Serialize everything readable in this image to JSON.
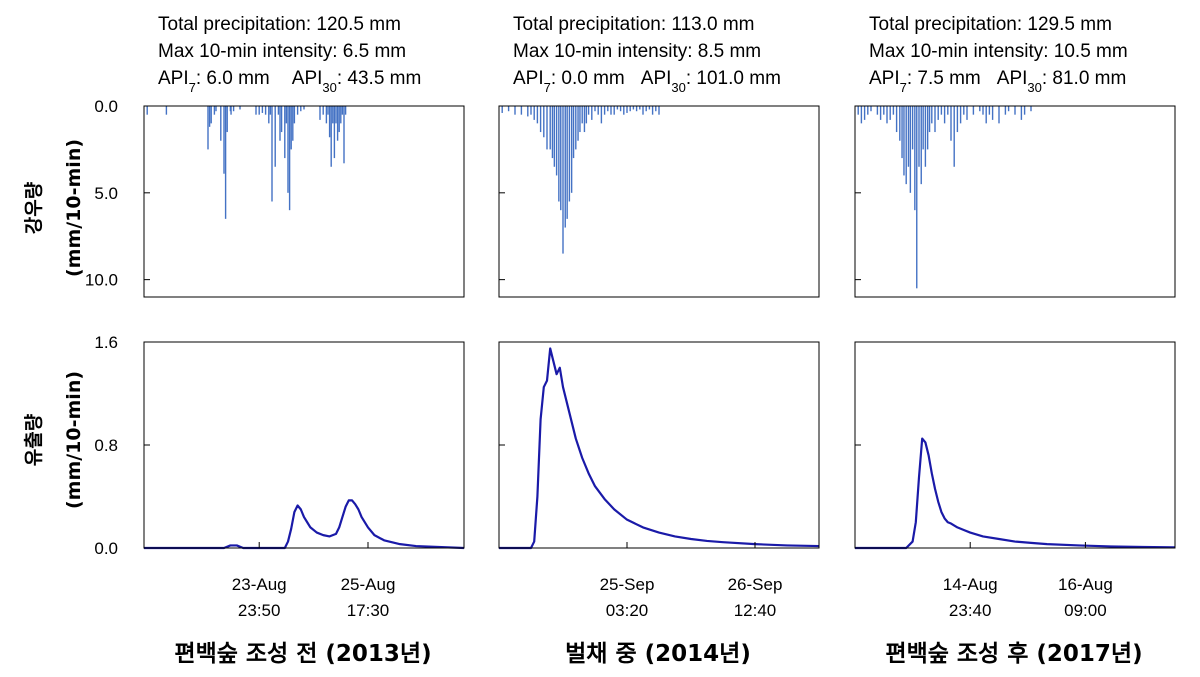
{
  "y_labels": {
    "rain_line1": "강우량",
    "rain_line2": "(mm/10-min)",
    "runoff_line1": "유출량",
    "runoff_line2": "(mm/10-min)"
  },
  "chart_data": [
    {
      "type": "bar",
      "panel_title": "편백숲 조성 전 (2013년)",
      "annotations": {
        "total": "Total precipitation: 120.5 mm",
        "intensity": "Max 10-min intensity: 6.5 mm",
        "api7_label": "API",
        "api7_sub": "7",
        "api7_value": ": 6.0 mm",
        "api30_label": "API",
        "api30_sub": "30",
        "api30_value": ": 43.5 mm"
      },
      "ylabel": "강우량 (mm/10-min)",
      "y_inverted": true,
      "ylim": [
        0,
        11
      ],
      "yticks": [
        "0.0",
        "5.0",
        "10.0"
      ],
      "ytick_values": [
        0,
        5,
        10
      ],
      "xlim": [
        0,
        100
      ],
      "bar_color": "#4472c4",
      "series": [
        {
          "x": [
            1,
            7,
            20,
            20.5,
            21,
            22,
            22.5,
            24,
            25,
            25.5,
            26,
            27,
            27.2,
            28,
            30,
            35,
            36,
            37,
            38,
            39,
            39.5,
            40,
            41,
            42,
            42.5,
            43,
            44,
            44.5,
            45,
            45.5,
            46,
            46.5,
            47,
            48,
            49,
            50,
            55,
            56,
            57,
            57.5,
            58,
            58.5,
            59,
            59.5,
            60,
            60.5,
            61,
            61.5,
            62,
            62.5,
            63
          ],
          "values": [
            0.5,
            0.5,
            2.5,
            1.2,
            1.0,
            0.5,
            0.3,
            2.0,
            3.9,
            6.5,
            1.5,
            0.3,
            0.5,
            0.3,
            0.2,
            0.5,
            0.5,
            0.4,
            0.5,
            1.0,
            0.5,
            5.5,
            3.5,
            0.5,
            2.0,
            1.5,
            3.0,
            1.0,
            5.0,
            6.0,
            2.5,
            2.0,
            1.0,
            0.5,
            0.3,
            0.2,
            0.8,
            0.5,
            1.0,
            0.5,
            1.8,
            3.5,
            1.0,
            3.0,
            1.0,
            2.0,
            1.5,
            1.0,
            0.5,
            3.3,
            0.5
          ]
        }
      ]
    },
    {
      "type": "bar",
      "panel_title": "벌채 중 (2014년)",
      "annotations": {
        "total": "Total precipitation: 113.0 mm",
        "intensity": "Max 10-min intensity: 8.5 mm",
        "api7_label": "API",
        "api7_sub": "7",
        "api7_value": ": 0.0 mm",
        "api30_label": "API",
        "api30_sub": "30",
        "api30_value": ": 101.0 mm"
      },
      "ylabel": "강우량 (mm/10-min)",
      "y_inverted": true,
      "ylim": [
        0,
        11
      ],
      "yticks": [
        "0.0",
        "5.0",
        "10.0"
      ],
      "ytick_values": [
        0,
        5,
        10
      ],
      "xlim": [
        0,
        100
      ],
      "bar_color": "#4472c4",
      "series": [
        {
          "x": [
            1,
            3,
            5,
            7,
            9,
            10,
            11,
            12,
            13,
            14,
            15,
            16,
            16.7,
            17.3,
            18,
            18.7,
            19.3,
            20,
            20.7,
            21.3,
            22,
            22.7,
            23.3,
            24,
            24.7,
            25.3,
            26,
            26.7,
            27.3,
            28,
            29,
            30,
            31,
            32,
            33,
            34,
            35,
            36,
            37,
            38,
            39,
            40,
            41,
            42,
            43,
            44,
            45,
            46,
            47,
            48,
            49,
            50
          ],
          "values": [
            0.4,
            0.3,
            0.5,
            0.5,
            0.6,
            0.5,
            0.8,
            1.0,
            1.5,
            1.8,
            2.5,
            2.5,
            3.0,
            3.5,
            4.0,
            5.5,
            6.0,
            8.5,
            7.0,
            6.5,
            5.5,
            5.0,
            3.0,
            2.5,
            2.0,
            1.5,
            1.0,
            1.5,
            1.0,
            0.5,
            0.8,
            0.3,
            0.5,
            1.0,
            0.5,
            0.3,
            0.5,
            0.5,
            0.2,
            0.3,
            0.5,
            0.4,
            0.3,
            0.2,
            0.3,
            0.2,
            0.5,
            0.3,
            0.2,
            0.5,
            0.3,
            0.5
          ]
        }
      ]
    },
    {
      "type": "bar",
      "panel_title": "편백숲 조성 후 (2017년)",
      "annotations": {
        "total": "Total precipitation: 129.5 mm",
        "intensity": "Max 10-min intensity: 10.5 mm",
        "api7_label": "API",
        "api7_sub": "7",
        "api7_value": ": 7.5 mm",
        "api30_label": "API",
        "api30_sub": "30",
        "api30_value": ": 81.0 mm"
      },
      "ylabel": "강우량 (mm/10-min)",
      "y_inverted": true,
      "ylim": [
        0,
        11
      ],
      "yticks": [
        "0.0",
        "5.0",
        "10.0"
      ],
      "ytick_values": [
        0,
        5,
        10
      ],
      "xlim": [
        0,
        100
      ],
      "bar_color": "#4472c4",
      "series": [
        {
          "x": [
            1,
            2,
            3,
            4,
            5,
            7,
            8,
            9,
            10,
            11,
            12,
            13,
            14,
            14.7,
            15.3,
            16,
            16.7,
            17.3,
            18,
            18.7,
            19.3,
            20,
            20.7,
            21.3,
            22,
            22.7,
            23.3,
            24,
            25,
            26,
            27,
            28,
            29,
            30,
            31,
            32,
            33,
            34,
            35,
            37,
            39,
            40,
            41,
            42,
            43,
            45,
            47,
            48,
            50,
            52,
            53,
            55
          ],
          "values": [
            0.5,
            1.0,
            0.8,
            0.5,
            0.3,
            0.5,
            0.8,
            0.5,
            1.0,
            0.8,
            0.5,
            1.5,
            2.0,
            3.0,
            4.0,
            4.5,
            3.5,
            5.0,
            2.5,
            6.0,
            10.5,
            3.5,
            4.5,
            2.5,
            3.5,
            2.5,
            1.5,
            1.0,
            1.5,
            0.8,
            0.5,
            1.0,
            0.5,
            2.0,
            3.5,
            1.5,
            1.0,
            0.5,
            0.8,
            0.5,
            0.3,
            0.5,
            1.0,
            0.5,
            0.8,
            1.0,
            0.5,
            0.3,
            0.5,
            0.8,
            0.5,
            0.3
          ]
        }
      ]
    },
    {
      "type": "line",
      "ylabel": "유출량 (mm/10-min)",
      "ylim": [
        0,
        1.6
      ],
      "yticks": [
        "0.0",
        "0.8",
        "1.6"
      ],
      "ytick_values": [
        0,
        0.8,
        1.6
      ],
      "xlim": [
        0,
        100
      ],
      "xticks": [
        {
          "x": 36,
          "line1": "23-Aug",
          "line2": "23:50"
        },
        {
          "x": 70,
          "line1": "25-Aug",
          "line2": "17:30"
        }
      ],
      "line_color": "#1a1aa8",
      "series": [
        {
          "x": [
            0,
            25,
            27,
            29,
            31,
            44,
            45,
            46,
            47,
            48,
            49,
            50,
            51,
            52,
            54,
            56,
            58,
            60,
            61,
            62,
            63,
            64,
            65,
            66,
            67,
            68,
            70,
            72,
            75,
            80,
            85,
            90,
            95,
            100
          ],
          "y": [
            0,
            0,
            0.02,
            0.02,
            0,
            0,
            0.05,
            0.15,
            0.28,
            0.33,
            0.3,
            0.24,
            0.2,
            0.16,
            0.12,
            0.1,
            0.09,
            0.11,
            0.16,
            0.24,
            0.32,
            0.37,
            0.37,
            0.34,
            0.3,
            0.24,
            0.16,
            0.1,
            0.06,
            0.03,
            0.015,
            0.01,
            0.005,
            0.0
          ]
        }
      ]
    },
    {
      "type": "line",
      "ylabel": "유출량 (mm/10-min)",
      "ylim": [
        0,
        1.6
      ],
      "yticks": [
        "0.0",
        "0.8",
        "1.6"
      ],
      "ytick_values": [
        0,
        0.8,
        1.6
      ],
      "xlim": [
        0,
        100
      ],
      "xticks": [
        {
          "x": 40,
          "line1": "25-Sep",
          "line2": "03:20"
        },
        {
          "x": 80,
          "line1": "26-Sep",
          "line2": "12:40"
        }
      ],
      "line_color": "#1a1aa8",
      "series": [
        {
          "x": [
            0,
            10,
            11,
            12,
            13,
            14,
            15,
            16,
            17,
            18,
            19,
            20,
            21,
            22,
            23,
            24,
            26,
            28,
            30,
            33,
            36,
            40,
            45,
            50,
            55,
            60,
            65,
            70,
            80,
            90,
            100
          ],
          "y": [
            0,
            0,
            0.05,
            0.4,
            1.0,
            1.25,
            1.3,
            1.55,
            1.45,
            1.35,
            1.4,
            1.25,
            1.15,
            1.05,
            0.95,
            0.85,
            0.7,
            0.58,
            0.48,
            0.38,
            0.3,
            0.22,
            0.16,
            0.12,
            0.09,
            0.07,
            0.055,
            0.045,
            0.03,
            0.02,
            0.015
          ]
        }
      ]
    },
    {
      "type": "line",
      "ylabel": "유출량 (mm/10-min)",
      "ylim": [
        0,
        1.6
      ],
      "yticks": [
        "0.0",
        "0.8",
        "1.6"
      ],
      "ytick_values": [
        0,
        0.8,
        1.6
      ],
      "xlim": [
        0,
        100
      ],
      "xticks": [
        {
          "x": 36,
          "line1": "14-Aug",
          "line2": "23:40"
        },
        {
          "x": 72,
          "line1": "16-Aug",
          "line2": "09:00"
        }
      ],
      "line_color": "#1a1aa8",
      "series": [
        {
          "x": [
            0,
            16,
            18,
            19,
            20,
            21,
            22,
            23,
            24,
            25,
            26,
            27,
            28,
            29,
            30,
            32,
            34,
            36,
            40,
            45,
            50,
            55,
            60,
            70,
            80,
            90,
            100
          ],
          "y": [
            0,
            0,
            0.05,
            0.2,
            0.55,
            0.85,
            0.82,
            0.72,
            0.58,
            0.46,
            0.36,
            0.28,
            0.23,
            0.2,
            0.19,
            0.16,
            0.14,
            0.12,
            0.09,
            0.07,
            0.05,
            0.04,
            0.03,
            0.02,
            0.012,
            0.008,
            0.005
          ]
        }
      ]
    }
  ]
}
